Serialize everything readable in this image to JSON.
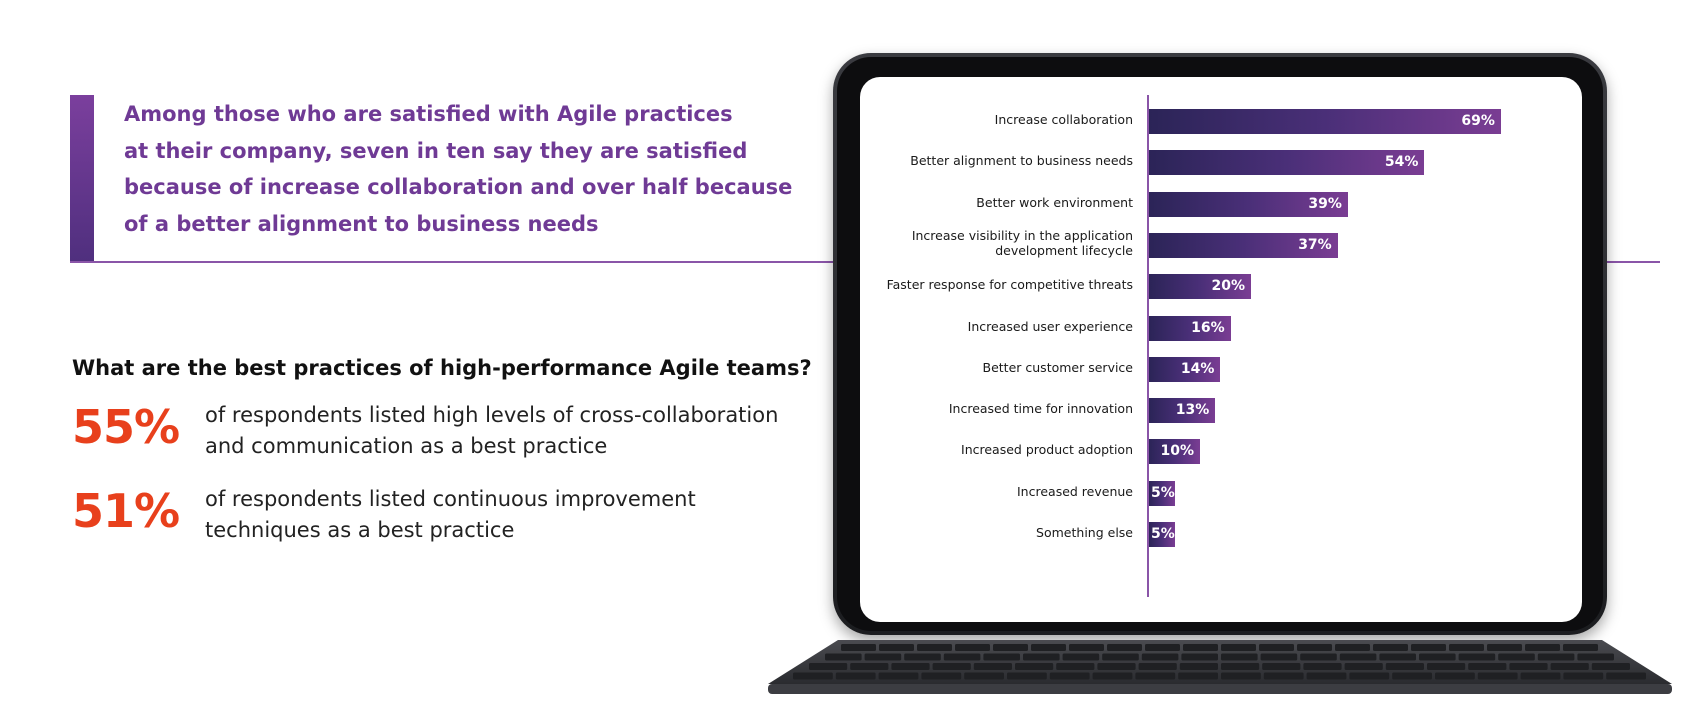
{
  "intro": {
    "quote": "Among those who are satisfied with Agile practices\nat their company, seven in ten say they are satisfied\nbecause of increase collaboration and over half because\nof a better alignment to business needs"
  },
  "practices": {
    "question": "What are the best practices of high-performance Agile teams?",
    "stats": [
      {
        "value": "55%",
        "text": "of respondents listed high levels of cross-collaboration and communication as a best practice"
      },
      {
        "value": "51%",
        "text": "of respondents listed continuous improvement techniques as a best practice"
      }
    ]
  },
  "colors": {
    "accent_purple": "#6f3a95",
    "stat_orange": "#e8401c",
    "bar_start": "#2b2457",
    "bar_end": "#7a3d93"
  },
  "chart_data": {
    "type": "bar",
    "orientation": "horizontal",
    "categories": [
      "Increase collaboration",
      "Better alignment to business needs",
      "Better work environment",
      "Increase visibility in the application\ndevelopment lifecycle",
      "Faster response for competitive threats",
      "Increased user experience",
      "Better customer service",
      "Increased time for innovation",
      "Increased product adoption",
      "Increased revenue",
      "Something else"
    ],
    "values": [
      69,
      54,
      39,
      37,
      20,
      16,
      14,
      13,
      10,
      5,
      5
    ],
    "value_labels": [
      "69%",
      "54%",
      "39%",
      "37%",
      "20%",
      "16%",
      "14%",
      "13%",
      "10%",
      "5%",
      "5%"
    ],
    "title": "",
    "xlabel": "",
    "ylabel": "",
    "xlim": [
      0,
      100
    ],
    "grid": false,
    "legend": "none"
  }
}
